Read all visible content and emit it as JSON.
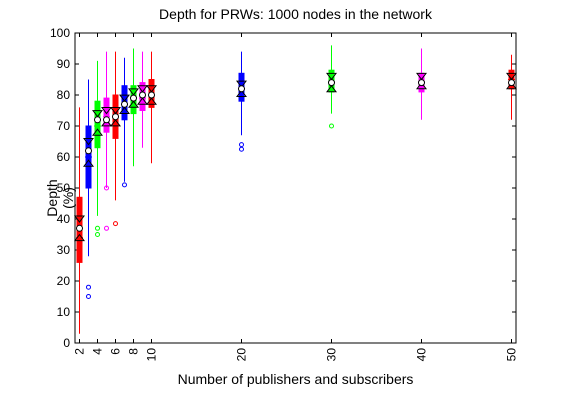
{
  "chart_data": {
    "type": "boxplot",
    "title": "Depth for PRWs: 1000 nodes in the network",
    "xlabel": "Number of publishers and subscribers",
    "ylabel": "Depth (%)",
    "ylim": [
      0,
      100
    ],
    "yticks": [
      0,
      10,
      20,
      30,
      40,
      50,
      60,
      70,
      80,
      90,
      100
    ],
    "xlim": [
      1.5,
      50.5
    ],
    "xticks": [
      2,
      4,
      6,
      8,
      10,
      20,
      30,
      40,
      50
    ],
    "grid": false,
    "boxes": [
      {
        "x": 2,
        "color": "#ff0000",
        "whisker_low": 3,
        "q1": 26,
        "median": 34,
        "q3": 47,
        "whisker_high": 76,
        "mean": 37,
        "ci_high": 40,
        "ci_low": 34,
        "outliers": []
      },
      {
        "x": 3,
        "color": "#0000ff",
        "whisker_low": 28,
        "q1": 50,
        "median": 60,
        "q3": 70,
        "whisker_high": 85,
        "mean": 62,
        "ci_high": 65,
        "ci_low": 58,
        "outliers": [
          15,
          18
        ]
      },
      {
        "x": 4,
        "color": "#00ff00",
        "whisker_low": 41,
        "q1": 63,
        "median": 70,
        "q3": 78,
        "whisker_high": 91,
        "mean": 72,
        "ci_high": 74,
        "ci_low": 68,
        "outliers": [
          35,
          37
        ]
      },
      {
        "x": 5,
        "color": "#ff00ff",
        "whisker_low": 50,
        "q1": 68,
        "median": 73,
        "q3": 79,
        "whisker_high": 94,
        "mean": 72,
        "ci_high": 75,
        "ci_low": 71,
        "outliers": [
          50,
          37
        ]
      },
      {
        "x": 6,
        "color": "#ff0000",
        "whisker_low": 46,
        "q1": 66,
        "median": 73,
        "q3": 80,
        "whisker_high": 94,
        "mean": 73,
        "ci_high": 75,
        "ci_low": 71,
        "outliers": [
          38.5
        ]
      },
      {
        "x": 7,
        "color": "#0000ff",
        "whisker_low": 52,
        "q1": 72,
        "median": 77,
        "q3": 83,
        "whisker_high": 92,
        "mean": 77,
        "ci_high": 79,
        "ci_low": 75,
        "outliers": [
          51
        ]
      },
      {
        "x": 8,
        "color": "#00ff00",
        "whisker_low": 57,
        "q1": 74,
        "median": 79,
        "q3": 83,
        "whisker_high": 95,
        "mean": 79,
        "ci_high": 81,
        "ci_low": 77,
        "outliers": []
      },
      {
        "x": 9,
        "color": "#ff00ff",
        "whisker_low": 63,
        "q1": 75,
        "median": 79,
        "q3": 84,
        "whisker_high": 94,
        "mean": 80,
        "ci_high": 82,
        "ci_low": 78,
        "outliers": []
      },
      {
        "x": 10,
        "color": "#ff0000",
        "whisker_low": 58,
        "q1": 76,
        "median": 80,
        "q3": 85,
        "whisker_high": 94,
        "mean": 80,
        "ci_high": 82,
        "ci_low": 78,
        "outliers": []
      },
      {
        "x": 20,
        "color": "#0000ff",
        "whisker_low": 67,
        "q1": 78,
        "median": 82,
        "q3": 87,
        "whisker_high": 94,
        "mean": 82,
        "ci_high": 83.5,
        "ci_low": 80.5,
        "outliers": [
          62.5,
          64
        ]
      },
      {
        "x": 30,
        "color": "#00ff00",
        "whisker_low": 74,
        "q1": 81,
        "median": 84,
        "q3": 88,
        "whisker_high": 96,
        "mean": 84,
        "ci_high": 86,
        "ci_low": 82,
        "outliers": [
          70
        ]
      },
      {
        "x": 40,
        "color": "#ff00ff",
        "whisker_low": 72,
        "q1": 81,
        "median": 84,
        "q3": 87,
        "whisker_high": 95,
        "mean": 84,
        "ci_high": 86,
        "ci_low": 83,
        "outliers": []
      },
      {
        "x": 50,
        "color": "#ff0000",
        "whisker_low": 72,
        "q1": 82,
        "median": 85,
        "q3": 88,
        "whisker_high": 93,
        "mean": 84,
        "ci_high": 86,
        "ci_low": 83,
        "outliers": []
      }
    ]
  }
}
